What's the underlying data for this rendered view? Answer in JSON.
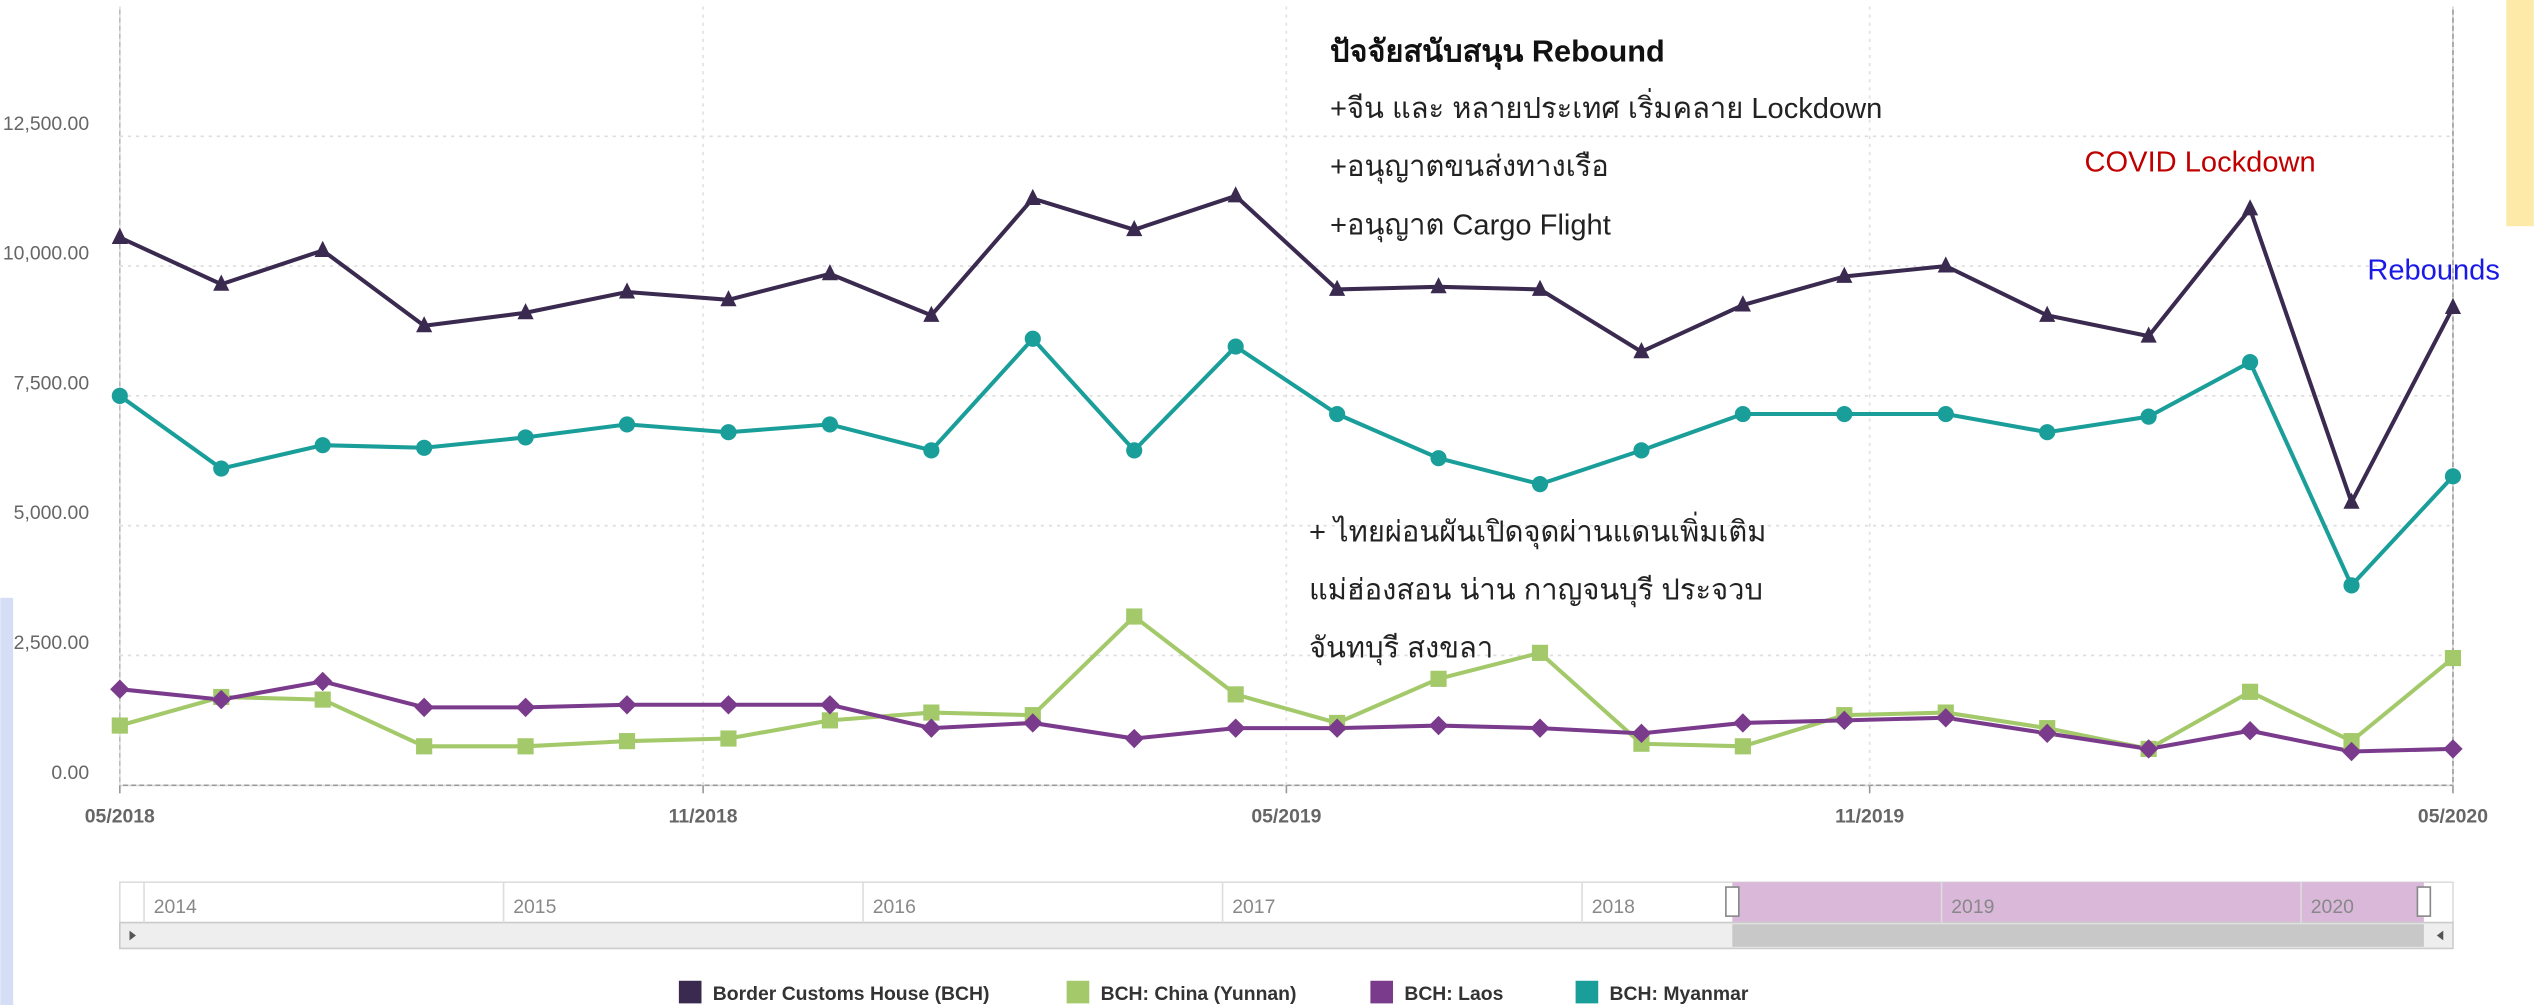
{
  "chart_data": {
    "type": "line",
    "categories": [
      "05/2018",
      null,
      null,
      null,
      null,
      null,
      null,
      null,
      null,
      null,
      null,
      null,
      null,
      null,
      null,
      null,
      null,
      null,
      null,
      null,
      null,
      null,
      null,
      "05/2020"
    ],
    "xlim": [
      0,
      23
    ],
    "xticks": [
      {
        "value": 0,
        "label": "05/2018"
      },
      {
        "value": 5.75,
        "label": "11/2018"
      },
      {
        "value": 11.5,
        "label": "05/2019"
      },
      {
        "value": 17.25,
        "label": "11/2019"
      },
      {
        "value": 23,
        "label": "05/2020"
      }
    ],
    "ylim": [
      0,
      15000
    ],
    "yticks": [
      {
        "value": 0,
        "label": "0.00"
      },
      {
        "value": 2500,
        "label": "2,500.00"
      },
      {
        "value": 5000,
        "label": "5,000.00"
      },
      {
        "value": 7500,
        "label": "7,500.00"
      },
      {
        "value": 10000,
        "label": "10,000.00"
      },
      {
        "value": 12500,
        "label": "12,500.00"
      }
    ],
    "grid": true,
    "series": [
      {
        "name": "Border Customs House (BCH)",
        "color": "#3b2a4f",
        "marker": "triangle",
        "values": [
          10550,
          9650,
          10300,
          8850,
          9100,
          9500,
          9350,
          9850,
          9050,
          11300,
          10700,
          11350,
          9550,
          9600,
          9550,
          8350,
          9250,
          9800,
          10000,
          9050,
          8650,
          11100,
          5450,
          9200
        ]
      },
      {
        "name": "BCH: China (Yunnan)",
        "color": "#a3c96a",
        "marker": "square",
        "values": [
          1150,
          1700,
          1650,
          750,
          750,
          850,
          900,
          1250,
          1400,
          1350,
          3250,
          1750,
          1200,
          2050,
          2550,
          800,
          750,
          1350,
          1400,
          1100,
          700,
          1800,
          850,
          2450
        ]
      },
      {
        "name": "BCH: Laos",
        "color": "#7b3b8c",
        "marker": "diamond",
        "values": [
          1850,
          1650,
          2000,
          1500,
          1500,
          1550,
          1550,
          1550,
          1100,
          1200,
          900,
          1100,
          1100,
          1150,
          1100,
          1000,
          1200,
          1250,
          1300,
          1000,
          700,
          1050,
          650,
          700
        ]
      },
      {
        "name": "BCH: Myanmar",
        "color": "#1a9e9a",
        "marker": "circle",
        "values": [
          7500,
          6100,
          6550,
          6500,
          6700,
          6950,
          6800,
          6950,
          6450,
          8600,
          6450,
          8450,
          7150,
          6300,
          5800,
          6450,
          7150,
          7150,
          7150,
          6800,
          7100,
          8150,
          3850,
          5950
        ]
      }
    ],
    "annotations": [
      "ปัจจัยสนับสนุน Rebound",
      "+จีน และ หลายประเทศ เริ่มคลาย Lockdown",
      "+อนุญาตขนส่งทางเรือ",
      "+อนุญาต Cargo Flight",
      "COVID Lockdown",
      "Rebounds",
      "+ ไทยผ่อนผันเปิดจุดผ่านแดนเพิ่มเติม",
      "แม่ฮ่องสอน น่าน กาญจนบุรี ประจวบ",
      "จันทบุรี สงขลา"
    ]
  },
  "navigator": {
    "years": [
      "2014",
      "2015",
      "2016",
      "2017",
      "2018",
      "2019",
      "2020"
    ]
  }
}
